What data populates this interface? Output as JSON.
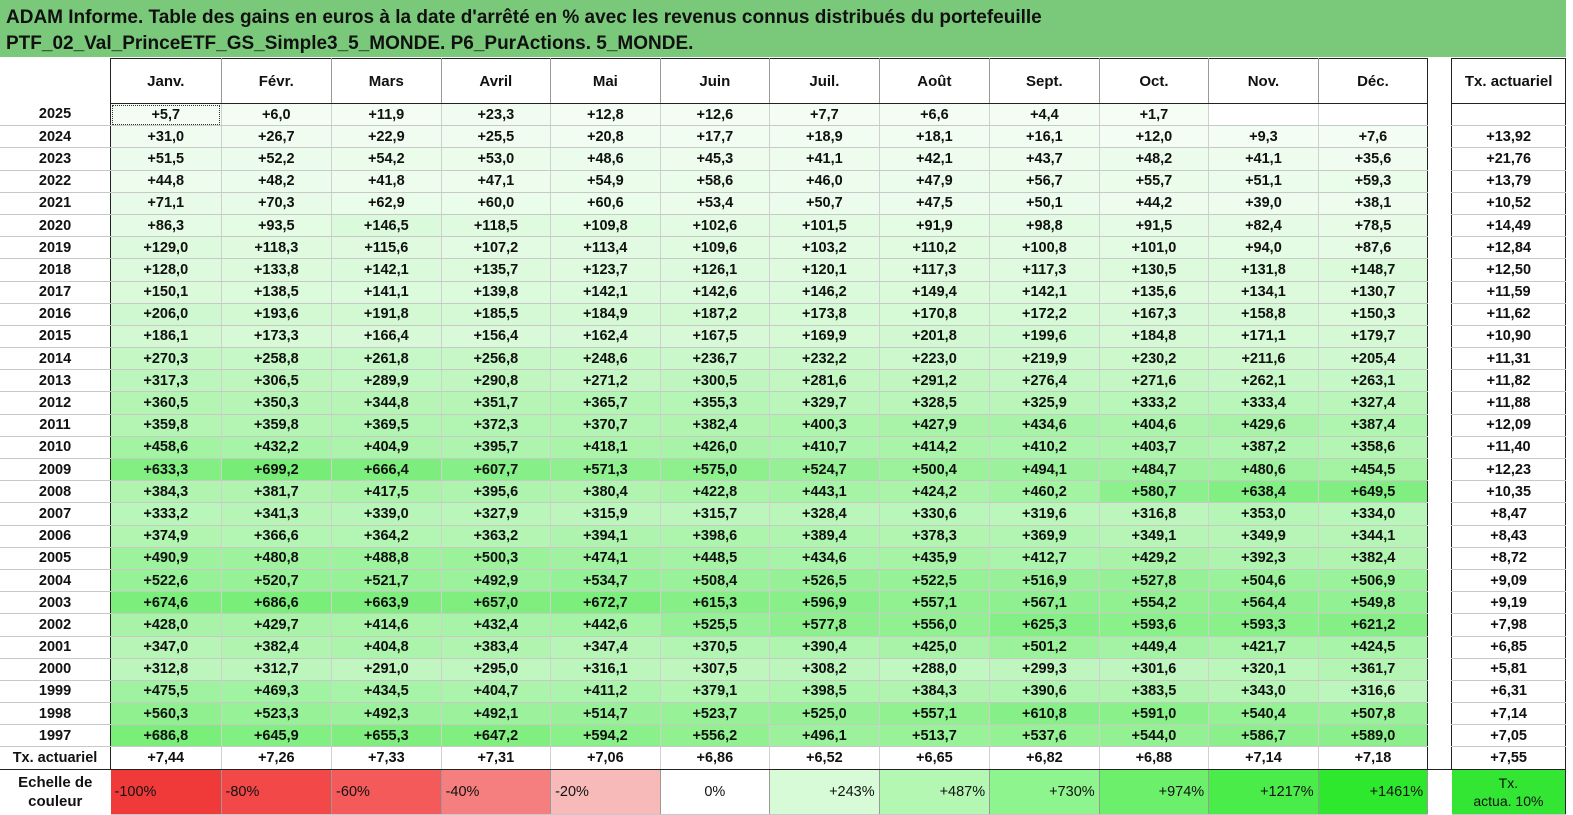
{
  "title": {
    "line1": "ADAM Informe. Table des gains en euros à la date d'arrêté en % avec les revenus connus distribués du portefeuille",
    "line2": "PTF_02_Val_PrinceETF_GS_Simple3_5_MONDE. P6_PurActions. 5_MONDE."
  },
  "columns": {
    "months": [
      "Janv.",
      "Févr.",
      "Mars",
      "Avril",
      "Mai",
      "Juin",
      "Juil.",
      "Août",
      "Sept.",
      "Oct.",
      "Nov.",
      "Déc."
    ],
    "rate": "Tx. actuariel"
  },
  "rows": [
    {
      "year": "2025",
      "values": [
        "+5,7",
        "+6,0",
        "+11,9",
        "+23,3",
        "+12,8",
        "+12,6",
        "+7,7",
        "+6,6",
        "+4,4",
        "+1,7",
        "",
        ""
      ],
      "rate": ""
    },
    {
      "year": "2024",
      "values": [
        "+31,0",
        "+26,7",
        "+22,9",
        "+25,5",
        "+20,8",
        "+17,7",
        "+18,9",
        "+18,1",
        "+16,1",
        "+12,0",
        "+9,3",
        "+7,6"
      ],
      "rate": "+13,92"
    },
    {
      "year": "2023",
      "values": [
        "+51,5",
        "+52,2",
        "+54,2",
        "+53,0",
        "+48,6",
        "+45,3",
        "+41,1",
        "+42,1",
        "+43,7",
        "+48,2",
        "+41,1",
        "+35,6"
      ],
      "rate": "+21,76"
    },
    {
      "year": "2022",
      "values": [
        "+44,8",
        "+48,2",
        "+41,8",
        "+47,1",
        "+54,9",
        "+58,6",
        "+46,0",
        "+47,9",
        "+56,7",
        "+55,7",
        "+51,1",
        "+59,3"
      ],
      "rate": "+13,79"
    },
    {
      "year": "2021",
      "values": [
        "+71,1",
        "+70,3",
        "+62,9",
        "+60,0",
        "+60,6",
        "+53,4",
        "+50,7",
        "+47,5",
        "+50,1",
        "+44,2",
        "+39,0",
        "+38,1"
      ],
      "rate": "+10,52"
    },
    {
      "year": "2020",
      "values": [
        "+86,3",
        "+93,5",
        "+146,5",
        "+118,5",
        "+109,8",
        "+102,6",
        "+101,5",
        "+91,9",
        "+98,8",
        "+91,5",
        "+82,4",
        "+78,5"
      ],
      "rate": "+14,49"
    },
    {
      "year": "2019",
      "values": [
        "+129,0",
        "+118,3",
        "+115,6",
        "+107,2",
        "+113,4",
        "+109,6",
        "+103,2",
        "+110,2",
        "+100,8",
        "+101,0",
        "+94,0",
        "+87,6"
      ],
      "rate": "+12,84"
    },
    {
      "year": "2018",
      "values": [
        "+128,0",
        "+133,8",
        "+142,1",
        "+135,7",
        "+123,7",
        "+126,1",
        "+120,1",
        "+117,3",
        "+117,3",
        "+130,5",
        "+131,8",
        "+148,7"
      ],
      "rate": "+12,50"
    },
    {
      "year": "2017",
      "values": [
        "+150,1",
        "+138,5",
        "+141,1",
        "+139,8",
        "+142,1",
        "+142,6",
        "+146,2",
        "+149,4",
        "+142,1",
        "+135,6",
        "+134,1",
        "+130,7"
      ],
      "rate": "+11,59"
    },
    {
      "year": "2016",
      "values": [
        "+206,0",
        "+193,6",
        "+191,8",
        "+185,5",
        "+184,9",
        "+187,2",
        "+173,8",
        "+170,8",
        "+172,2",
        "+167,3",
        "+158,8",
        "+150,3"
      ],
      "rate": "+11,62"
    },
    {
      "year": "2015",
      "values": [
        "+186,1",
        "+173,3",
        "+166,4",
        "+156,4",
        "+162,4",
        "+167,5",
        "+169,9",
        "+201,8",
        "+199,6",
        "+184,8",
        "+171,1",
        "+179,7"
      ],
      "rate": "+10,90"
    },
    {
      "year": "2014",
      "values": [
        "+270,3",
        "+258,8",
        "+261,8",
        "+256,8",
        "+248,6",
        "+236,7",
        "+232,2",
        "+223,0",
        "+219,9",
        "+230,2",
        "+211,6",
        "+205,4"
      ],
      "rate": "+11,31"
    },
    {
      "year": "2013",
      "values": [
        "+317,3",
        "+306,5",
        "+289,9",
        "+290,8",
        "+271,2",
        "+300,5",
        "+281,6",
        "+291,2",
        "+276,4",
        "+271,6",
        "+262,1",
        "+263,1"
      ],
      "rate": "+11,82"
    },
    {
      "year": "2012",
      "values": [
        "+360,5",
        "+350,3",
        "+344,8",
        "+351,7",
        "+365,7",
        "+355,3",
        "+329,7",
        "+328,5",
        "+325,9",
        "+333,2",
        "+333,4",
        "+327,4"
      ],
      "rate": "+11,88"
    },
    {
      "year": "2011",
      "values": [
        "+359,8",
        "+359,8",
        "+369,5",
        "+372,3",
        "+370,7",
        "+382,4",
        "+400,3",
        "+427,9",
        "+434,6",
        "+404,6",
        "+429,6",
        "+387,4"
      ],
      "rate": "+12,09"
    },
    {
      "year": "2010",
      "values": [
        "+458,6",
        "+432,2",
        "+404,9",
        "+395,7",
        "+418,1",
        "+426,0",
        "+410,7",
        "+414,2",
        "+410,2",
        "+403,7",
        "+387,2",
        "+358,6"
      ],
      "rate": "+11,40"
    },
    {
      "year": "2009",
      "values": [
        "+633,3",
        "+699,2",
        "+666,4",
        "+607,7",
        "+571,3",
        "+575,0",
        "+524,7",
        "+500,4",
        "+494,1",
        "+484,7",
        "+480,6",
        "+454,5"
      ],
      "rate": "+12,23"
    },
    {
      "year": "2008",
      "values": [
        "+384,3",
        "+381,7",
        "+417,5",
        "+395,6",
        "+380,4",
        "+422,8",
        "+443,1",
        "+424,2",
        "+460,2",
        "+580,7",
        "+638,4",
        "+649,5"
      ],
      "rate": "+10,35"
    },
    {
      "year": "2007",
      "values": [
        "+333,2",
        "+341,3",
        "+339,0",
        "+327,9",
        "+315,9",
        "+315,7",
        "+328,4",
        "+330,6",
        "+319,6",
        "+316,8",
        "+353,0",
        "+334,0"
      ],
      "rate": "+8,47"
    },
    {
      "year": "2006",
      "values": [
        "+374,9",
        "+366,6",
        "+364,2",
        "+363,2",
        "+394,1",
        "+398,6",
        "+389,4",
        "+378,3",
        "+369,9",
        "+349,1",
        "+349,9",
        "+344,1"
      ],
      "rate": "+8,43"
    },
    {
      "year": "2005",
      "values": [
        "+490,9",
        "+480,8",
        "+488,8",
        "+500,3",
        "+474,1",
        "+448,5",
        "+434,6",
        "+435,9",
        "+412,7",
        "+429,2",
        "+392,3",
        "+382,4"
      ],
      "rate": "+8,72"
    },
    {
      "year": "2004",
      "values": [
        "+522,6",
        "+520,7",
        "+521,7",
        "+492,9",
        "+534,7",
        "+508,4",
        "+526,5",
        "+522,5",
        "+516,9",
        "+527,8",
        "+504,6",
        "+506,9"
      ],
      "rate": "+9,09"
    },
    {
      "year": "2003",
      "values": [
        "+674,6",
        "+686,6",
        "+663,9",
        "+657,0",
        "+672,7",
        "+615,3",
        "+596,9",
        "+557,1",
        "+567,1",
        "+554,2",
        "+564,4",
        "+549,8"
      ],
      "rate": "+9,19"
    },
    {
      "year": "2002",
      "values": [
        "+428,0",
        "+429,7",
        "+414,6",
        "+432,4",
        "+442,6",
        "+525,5",
        "+577,8",
        "+556,0",
        "+625,3",
        "+593,6",
        "+593,3",
        "+621,2"
      ],
      "rate": "+7,98"
    },
    {
      "year": "2001",
      "values": [
        "+347,0",
        "+382,4",
        "+404,8",
        "+383,4",
        "+347,4",
        "+370,5",
        "+390,4",
        "+425,0",
        "+501,2",
        "+449,4",
        "+421,7",
        "+424,5"
      ],
      "rate": "+6,85"
    },
    {
      "year": "2000",
      "values": [
        "+312,8",
        "+312,7",
        "+291,0",
        "+295,0",
        "+316,1",
        "+307,5",
        "+308,2",
        "+288,0",
        "+299,3",
        "+301,6",
        "+320,1",
        "+361,7"
      ],
      "rate": "+5,81"
    },
    {
      "year": "1999",
      "values": [
        "+475,5",
        "+469,3",
        "+434,5",
        "+404,7",
        "+411,2",
        "+379,1",
        "+398,5",
        "+384,3",
        "+390,6",
        "+383,5",
        "+343,0",
        "+316,6"
      ],
      "rate": "+6,31"
    },
    {
      "year": "1998",
      "values": [
        "+560,3",
        "+523,3",
        "+492,3",
        "+492,1",
        "+514,7",
        "+523,7",
        "+525,0",
        "+557,1",
        "+610,8",
        "+591,0",
        "+540,4",
        "+507,8"
      ],
      "rate": "+7,14"
    },
    {
      "year": "1997",
      "values": [
        "+686,8",
        "+645,9",
        "+655,3",
        "+647,2",
        "+594,2",
        "+556,2",
        "+496,1",
        "+513,7",
        "+537,6",
        "+544,0",
        "+586,7",
        "+589,0"
      ],
      "rate": "+7,05"
    }
  ],
  "averages": {
    "label": "Tx. actuariel",
    "values": [
      "+7,44",
      "+7,26",
      "+7,33",
      "+7,31",
      "+7,06",
      "+6,86",
      "+6,52",
      "+6,65",
      "+6,82",
      "+6,88",
      "+7,14",
      "+7,18"
    ],
    "rate": "+7,55"
  },
  "scale": {
    "label_line1": "Echelle de",
    "label_line2": "couleur",
    "items": [
      {
        "text": "-100%",
        "color": "#f03a3a"
      },
      {
        "text": "-80%",
        "color": "#f24848"
      },
      {
        "text": "-60%",
        "color": "#f45a5a"
      },
      {
        "text": "-40%",
        "color": "#f57f7f"
      },
      {
        "text": "-20%",
        "color": "#f8b9b9"
      },
      {
        "text": "0%",
        "color": "#ffffff"
      },
      {
        "text": "+243%",
        "color": "#d6fbd6"
      },
      {
        "text": "+487%",
        "color": "#b3f7b3"
      },
      {
        "text": "+730%",
        "color": "#8ef48e"
      },
      {
        "text": "+974%",
        "color": "#6cf06c"
      },
      {
        "text": "+1217%",
        "color": "#4aec4a"
      },
      {
        "text": "+1461%",
        "color": "#2ee82e"
      }
    ],
    "rate_line1": "Tx.",
    "rate_line2": "actua. 10%",
    "rate_color": "#33e633"
  }
}
